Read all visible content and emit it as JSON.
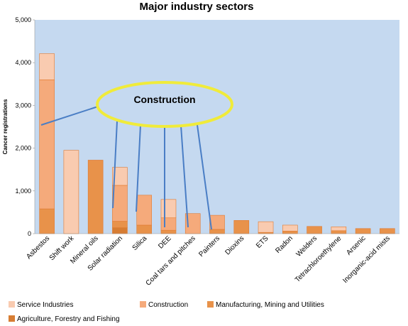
{
  "chart_data": {
    "type": "bar",
    "stacked": true,
    "title": "Major industry sectors",
    "ylabel": "Cancer registrations",
    "xlabel": "",
    "ylim": [
      0,
      5000
    ],
    "yticks": [
      "0",
      "1,000",
      "2,000",
      "3,000",
      "4,000",
      "5,000"
    ],
    "ytick_values": [
      0,
      1000,
      2000,
      3000,
      4000,
      5000
    ],
    "grid": false,
    "legend_position": "bottom",
    "plot_background": "#c5d9f0",
    "categories": [
      "Asbestos",
      "Shift work",
      "Mineral oils",
      "Solar radiation",
      "Silica",
      "DEE",
      "Coal tars and pitches",
      "Painters",
      "Dioxins",
      "ETS",
      "Radon",
      "Welders",
      "Tetrachloroethylene",
      "Arsenic",
      "Inorganic-acid mists"
    ],
    "series": [
      {
        "name": "Agriculture, Forestry and Fishing",
        "color": "#d77d33",
        "values": [
          0,
          0,
          0,
          140,
          0,
          0,
          0,
          0,
          0,
          0,
          0,
          0,
          0,
          0,
          0
        ]
      },
      {
        "name": "Manufacturing, Mining and Utilities",
        "color": "#e8924a",
        "values": [
          580,
          0,
          1720,
          150,
          200,
          80,
          0,
          100,
          310,
          30,
          60,
          170,
          70,
          120,
          120
        ]
      },
      {
        "name": "Construction",
        "color": "#f5aa7b",
        "values": [
          3020,
          0,
          0,
          840,
          700,
          290,
          470,
          330,
          0,
          0,
          0,
          0,
          0,
          0,
          0
        ]
      },
      {
        "name": "Service Industries",
        "color": "#f9cbb0",
        "values": [
          610,
          1950,
          0,
          420,
          0,
          430,
          0,
          0,
          0,
          250,
          140,
          0,
          90,
          0,
          0
        ]
      }
    ],
    "annotation": {
      "text": "Construction",
      "fill": "#c5d9f0",
      "stroke": "#f0eb3a",
      "targets": [
        "Asbestos",
        "Solar radiation",
        "Silica",
        "DEE",
        "Coal tars and pitches",
        "Painters"
      ]
    },
    "legend_order": [
      "Service Industries",
      "Construction",
      "Manufacturing, Mining and Utilities",
      "Agriculture, Forestry and Fishing"
    ]
  }
}
